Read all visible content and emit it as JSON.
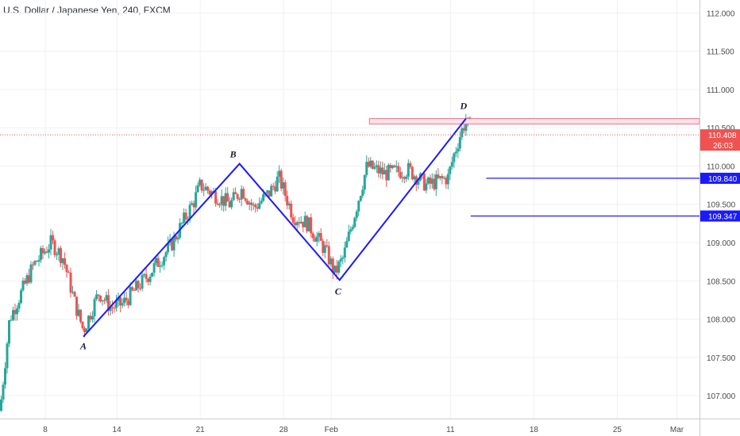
{
  "header": {
    "title": "U.S. Dollar / Japanese Yen, 240, FXCM"
  },
  "colors": {
    "up": "#26a69a",
    "down": "#ef5350",
    "pattern": "#1a1aff",
    "price_line": "#ef5350",
    "grid": "#eef0f3",
    "zone_fill": "#fde0e6",
    "zone_stroke": "#e57390"
  },
  "chart_data": {
    "type": "candlestick",
    "title": "U.S. Dollar / Japanese Yen, 240, FXCM",
    "ylim": [
      106.7,
      112.17
    ],
    "y_ticks": [
      {
        "value": 107.0,
        "label": "107.000"
      },
      {
        "value": 107.5,
        "label": "107.500"
      },
      {
        "value": 108.0,
        "label": "108.000"
      },
      {
        "value": 108.5,
        "label": "108.500"
      },
      {
        "value": 109.0,
        "label": "109.000"
      },
      {
        "value": 109.5,
        "label": "109.500"
      },
      {
        "value": 110.0,
        "label": "110.000"
      },
      {
        "value": 110.5,
        "label": "110.500"
      },
      {
        "value": 111.0,
        "label": "111.000"
      },
      {
        "value": 111.5,
        "label": "111.500"
      },
      {
        "value": 112.0,
        "label": "112.000"
      }
    ],
    "x_ticks": [
      {
        "day": 8,
        "label": "8"
      },
      {
        "day": 14,
        "label": "14"
      },
      {
        "day": 21,
        "label": "21"
      },
      {
        "day": 28,
        "label": "28"
      },
      {
        "day": 32,
        "label": "Feb"
      },
      {
        "day": 42,
        "label": "11"
      },
      {
        "day": 49,
        "label": "18"
      },
      {
        "day": 56,
        "label": "25"
      },
      {
        "day": 61,
        "label": "Mar"
      }
    ],
    "day_range": [
      4.2,
      62.9
    ],
    "price_path": [
      [
        4.2,
        106.8
      ],
      [
        5.0,
        108.0
      ],
      [
        7.0,
        108.7
      ],
      [
        8.5,
        109.0
      ],
      [
        9.5,
        108.8
      ],
      [
        10.5,
        108.2
      ],
      [
        11.2,
        107.85
      ],
      [
        12.5,
        108.35
      ],
      [
        13.5,
        108.15
      ],
      [
        14.5,
        108.2
      ],
      [
        16.5,
        108.55
      ],
      [
        18.5,
        108.95
      ],
      [
        20.5,
        109.55
      ],
      [
        21.0,
        109.75
      ],
      [
        22.0,
        109.65
      ],
      [
        23.5,
        109.5
      ],
      [
        24.5,
        109.7
      ],
      [
        25.5,
        109.45
      ],
      [
        26.8,
        109.65
      ],
      [
        27.6,
        109.85
      ],
      [
        28.8,
        109.35
      ],
      [
        30.0,
        109.25
      ],
      [
        31.5,
        108.9
      ],
      [
        32.3,
        108.6
      ],
      [
        33.0,
        108.8
      ],
      [
        34.0,
        109.4
      ],
      [
        35.0,
        110.0
      ],
      [
        36.5,
        109.9
      ],
      [
        38.5,
        109.95
      ],
      [
        40.0,
        109.75
      ],
      [
        41.8,
        109.85
      ],
      [
        42.3,
        110.15
      ],
      [
        42.8,
        110.4
      ],
      [
        43.3,
        110.6
      ],
      [
        43.7,
        110.45
      ]
    ],
    "pattern": {
      "points": [
        {
          "label": "A",
          "day": 11.2,
          "price": 107.77
        },
        {
          "label": "B",
          "day": 24.3,
          "price": 110.03
        },
        {
          "label": "C",
          "day": 32.7,
          "price": 108.51
        },
        {
          "label": "D",
          "day": 43.3,
          "price": 110.62
        }
      ]
    },
    "levels": [
      {
        "price": 109.84,
        "label": "109.840",
        "from_day": 45.0
      },
      {
        "price": 109.347,
        "label": "109.347",
        "from_day": 43.7
      }
    ],
    "zone": {
      "from_day": 35.2,
      "top": 110.62,
      "bottom": 110.55
    },
    "last_price": {
      "price": 110.408,
      "label": "110.408",
      "timer": "26:03"
    }
  }
}
